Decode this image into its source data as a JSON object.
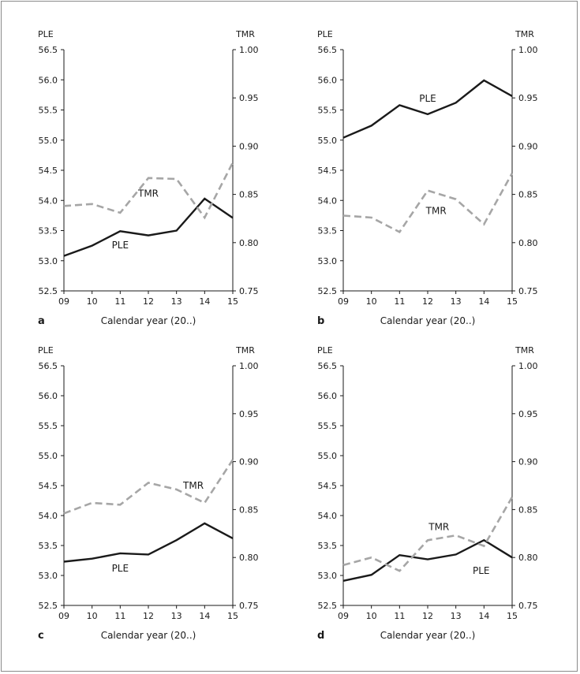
{
  "chart_data": [
    {
      "panel": "a",
      "type": "line",
      "categories": [
        "09",
        "10",
        "11",
        "12",
        "13",
        "14",
        "15"
      ],
      "xlabel": "Calendar year (20..)",
      "left_axis": {
        "label": "PLE",
        "ylim": [
          52.5,
          56.5
        ],
        "ticks": [
          "52.5",
          "53.0",
          "53.5",
          "54.0",
          "54.5",
          "55.0",
          "55.5",
          "56.0",
          "56.5"
        ]
      },
      "right_axis": {
        "label": "TMR",
        "ylim": [
          0.75,
          1.0
        ],
        "ticks": [
          "0.75",
          "0.80",
          "0.85",
          "0.90",
          "0.95",
          "1.00"
        ]
      },
      "series": [
        {
          "name": "PLE",
          "axis": "left",
          "style": "solid",
          "color": "#1a1a1a",
          "values": [
            53.08,
            53.25,
            53.49,
            53.42,
            53.5,
            54.03,
            53.71
          ]
        },
        {
          "name": "TMR",
          "axis": "right",
          "style": "dashed",
          "color": "#a6a6a6",
          "values": [
            0.838,
            0.84,
            0.831,
            0.867,
            0.866,
            0.826,
            0.883
          ]
        }
      ],
      "annotations": [
        {
          "text": "TMR",
          "near": {
            "x": "12",
            "value": 0.851,
            "axis": "right"
          }
        },
        {
          "text": "PLE",
          "near": {
            "x": "11",
            "value": 53.26,
            "axis": "left"
          }
        }
      ]
    },
    {
      "panel": "b",
      "type": "line",
      "categories": [
        "09",
        "10",
        "11",
        "12",
        "13",
        "14",
        "15"
      ],
      "xlabel": "Calendar year (20..)",
      "left_axis": {
        "label": "PLE",
        "ylim": [
          52.5,
          56.5
        ],
        "ticks": [
          "52.5",
          "53.0",
          "53.5",
          "54.0",
          "54.5",
          "55.0",
          "55.5",
          "56.0",
          "56.5"
        ]
      },
      "right_axis": {
        "label": "TMR",
        "ylim": [
          0.75,
          1.0
        ],
        "ticks": [
          "0.75",
          "0.80",
          "0.85",
          "0.90",
          "0.95",
          "1.00"
        ]
      },
      "series": [
        {
          "name": "PLE",
          "axis": "left",
          "style": "solid",
          "color": "#1a1a1a",
          "values": [
            55.04,
            55.24,
            55.58,
            55.43,
            55.62,
            55.99,
            55.73
          ]
        },
        {
          "name": "TMR",
          "axis": "right",
          "style": "dashed",
          "color": "#a6a6a6",
          "values": [
            0.828,
            0.826,
            0.811,
            0.854,
            0.845,
            0.819,
            0.872
          ]
        }
      ],
      "annotations": [
        {
          "text": "PLE",
          "near": {
            "x": "12",
            "value": 55.69,
            "axis": "left"
          }
        },
        {
          "text": "TMR",
          "near": {
            "x": "12.3",
            "value": 0.833,
            "axis": "right"
          }
        }
      ]
    },
    {
      "panel": "c",
      "type": "line",
      "categories": [
        "09",
        "10",
        "11",
        "12",
        "13",
        "14",
        "15"
      ],
      "xlabel": "Calendar year (20..)",
      "left_axis": {
        "label": "PLE",
        "ylim": [
          52.5,
          56.5
        ],
        "ticks": [
          "52.5",
          "53.0",
          "53.5",
          "54.0",
          "54.5",
          "55.0",
          "55.5",
          "56.0",
          "56.5"
        ]
      },
      "right_axis": {
        "label": "TMR",
        "ylim": [
          0.75,
          1.0
        ],
        "ticks": [
          "0.75",
          "0.80",
          "0.85",
          "0.90",
          "0.95",
          "1.00"
        ]
      },
      "series": [
        {
          "name": "PLE",
          "axis": "left",
          "style": "solid",
          "color": "#1a1a1a",
          "values": [
            53.23,
            53.28,
            53.37,
            53.35,
            53.59,
            53.87,
            53.62
          ]
        },
        {
          "name": "TMR",
          "axis": "right",
          "style": "dashed",
          "color": "#a6a6a6",
          "values": [
            0.846,
            0.857,
            0.855,
            0.878,
            0.871,
            0.857,
            0.902
          ]
        }
      ],
      "annotations": [
        {
          "text": "TMR",
          "near": {
            "x": "13.6",
            "value": 0.875,
            "axis": "right"
          }
        },
        {
          "text": "PLE",
          "near": {
            "x": "11",
            "value": 53.12,
            "axis": "left"
          }
        }
      ]
    },
    {
      "panel": "d",
      "type": "line",
      "categories": [
        "09",
        "10",
        "11",
        "12",
        "13",
        "14",
        "15"
      ],
      "xlabel": "Calendar year (20..)",
      "left_axis": {
        "label": "PLE",
        "ylim": [
          52.5,
          56.5
        ],
        "ticks": [
          "52.5",
          "53.0",
          "53.5",
          "54.0",
          "54.5",
          "55.0",
          "55.5",
          "56.0",
          "56.5"
        ]
      },
      "right_axis": {
        "label": "TMR",
        "ylim": [
          0.75,
          1.0
        ],
        "ticks": [
          "0.75",
          "0.80",
          "0.85",
          "0.90",
          "0.95",
          "1.00"
        ]
      },
      "series": [
        {
          "name": "PLE",
          "axis": "left",
          "style": "solid",
          "color": "#1a1a1a",
          "values": [
            52.91,
            53.01,
            53.34,
            53.27,
            53.35,
            53.59,
            53.3
          ]
        },
        {
          "name": "TMR",
          "axis": "right",
          "style": "dashed",
          "color": "#a6a6a6",
          "values": [
            0.792,
            0.8,
            0.786,
            0.818,
            0.823,
            0.812,
            0.863
          ]
        }
      ],
      "annotations": [
        {
          "text": "TMR",
          "near": {
            "x": "12.4",
            "value": 0.832,
            "axis": "right"
          }
        },
        {
          "text": "PLE",
          "near": {
            "x": "13.9",
            "value": 53.08,
            "axis": "left"
          }
        }
      ]
    }
  ]
}
